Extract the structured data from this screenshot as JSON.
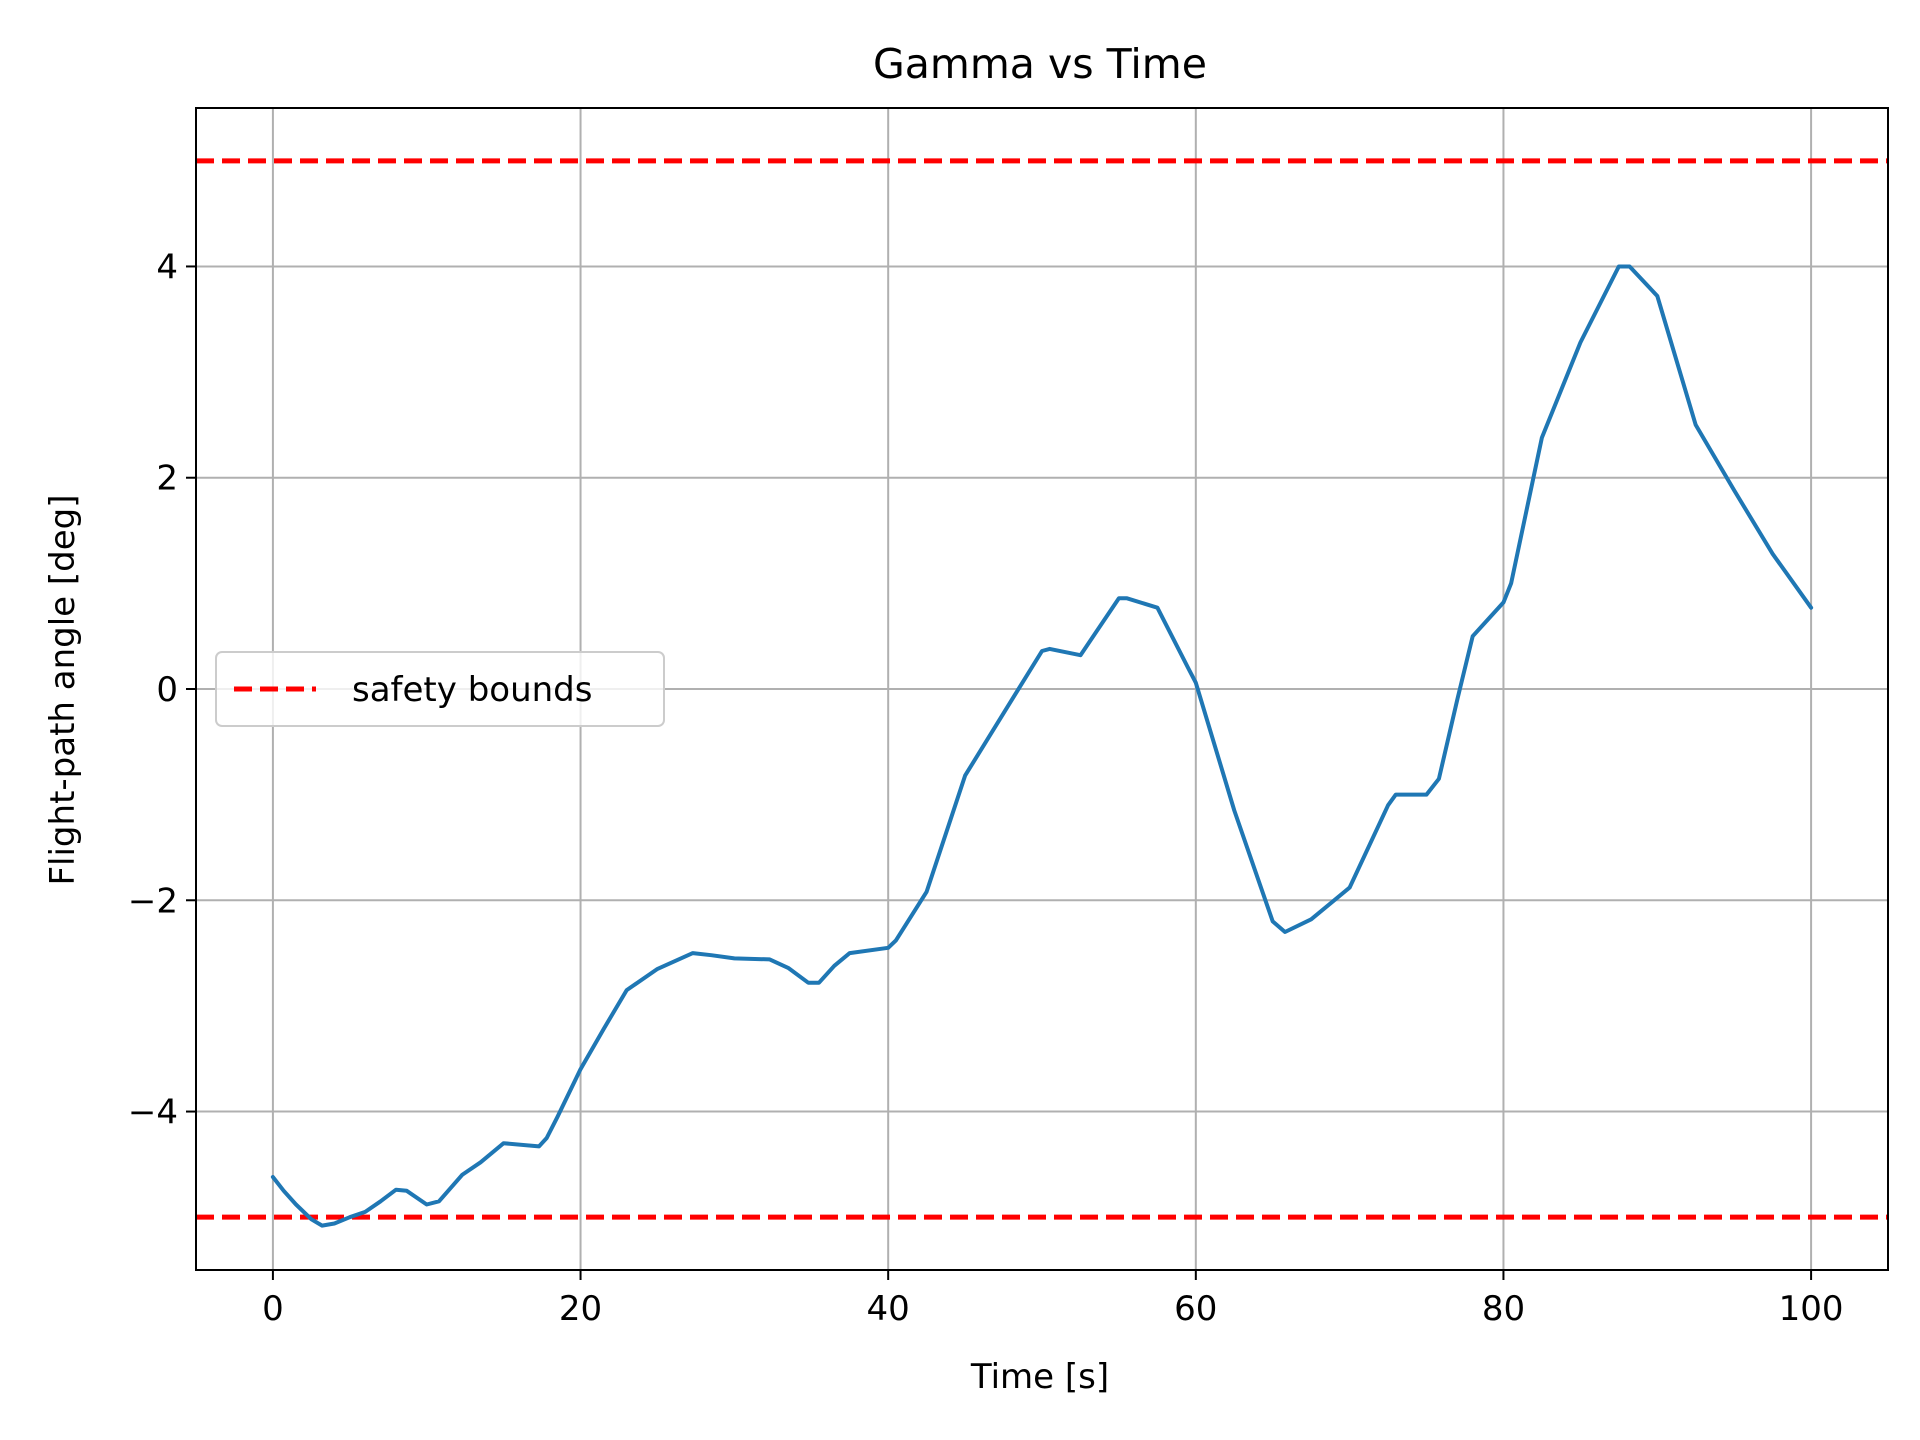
{
  "chart_data": {
    "type": "line",
    "title": "Gamma vs Time",
    "xlabel": "Time [s]",
    "ylabel": "Flight-path angle [deg]",
    "xlim": [
      -5,
      105
    ],
    "ylim": [
      -5.5,
      5.5
    ],
    "xticks": [
      0,
      20,
      40,
      60,
      80,
      100
    ],
    "yticks": [
      -4,
      -2,
      0,
      2,
      4
    ],
    "xtick_labels": [
      "0",
      "20",
      "40",
      "60",
      "80",
      "100"
    ],
    "ytick_labels": [
      "−4",
      "−2",
      "0",
      "2",
      "4"
    ],
    "grid": true,
    "legend": {
      "placement": "center-left",
      "entries": [
        {
          "label": "safety bounds",
          "color": "#ff0000",
          "style": "dashed"
        }
      ]
    },
    "series": [
      {
        "color": "#1f77b4",
        "style": "solid",
        "x": [
          0,
          0.7,
          1.5,
          2.5,
          3.2,
          4.0,
          5.0,
          6.0,
          7.0,
          8.0,
          8.7,
          10.0,
          10.8,
          12.3,
          13.5,
          15.0,
          17.3,
          17.8,
          18.5,
          20.0,
          21.5,
          23.0,
          25.0,
          27.3,
          28.5,
          30.0,
          32.3,
          33.5,
          34.8,
          35.5,
          36.5,
          37.5,
          40.0,
          40.5,
          42.5,
          45.0,
          47.5,
          50.0,
          50.5,
          52.5,
          55.0,
          55.5,
          57.5,
          59.5,
          60.0,
          62.5,
          65.0,
          65.8,
          67.5,
          70.0,
          72.5,
          73.0,
          75.0,
          75.8,
          77.0,
          78.0,
          80.0,
          80.5,
          82.5,
          85.0,
          87.5,
          88.2,
          90.0,
          92.5,
          95.0,
          97.5,
          100.0
        ],
        "values": [
          -4.62,
          -4.75,
          -4.88,
          -5.02,
          -5.08,
          -5.06,
          -5.0,
          -4.95,
          -4.85,
          -4.74,
          -4.75,
          -4.88,
          -4.85,
          -4.6,
          -4.48,
          -4.3,
          -4.33,
          -4.25,
          -4.05,
          -3.6,
          -3.22,
          -2.85,
          -2.65,
          -2.5,
          -2.52,
          -2.55,
          -2.56,
          -2.64,
          -2.78,
          -2.78,
          -2.62,
          -2.5,
          -2.45,
          -2.38,
          -1.92,
          -0.82,
          -0.23,
          0.36,
          0.38,
          0.32,
          0.86,
          0.86,
          0.77,
          0.2,
          0.06,
          -1.15,
          -2.2,
          -2.3,
          -2.18,
          -1.88,
          -1.1,
          -1.0,
          -1.0,
          -0.85,
          -0.1,
          0.5,
          0.82,
          1.0,
          2.38,
          3.28,
          4.0,
          4.0,
          3.72,
          2.5,
          1.88,
          1.28,
          0.77
        ]
      }
    ],
    "hlines": [
      {
        "y": 5,
        "color": "#ff0000",
        "style": "dashed"
      },
      {
        "y": -5,
        "color": "#ff0000",
        "style": "dashed"
      }
    ]
  }
}
